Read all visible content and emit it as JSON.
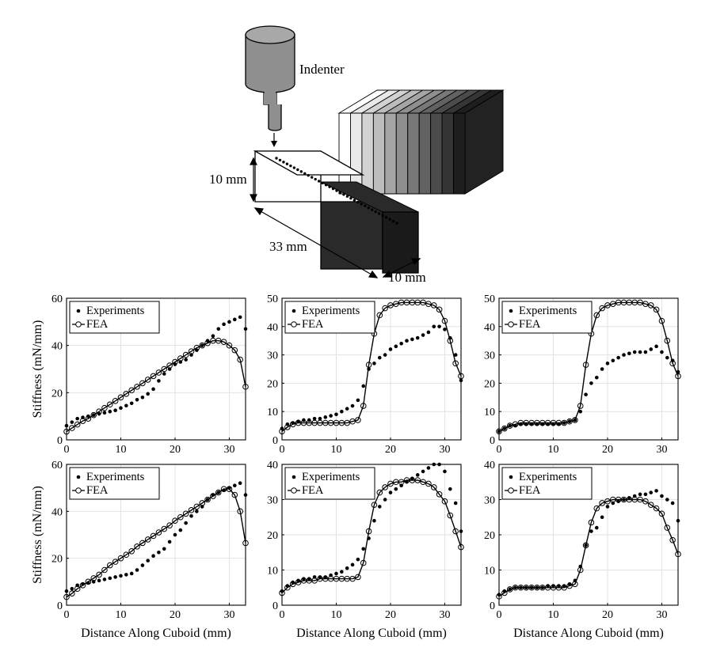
{
  "diagram": {
    "indenter_label": "Indenter",
    "height_label": "10 mm",
    "length_label": "33 mm",
    "width_label": "10 mm"
  },
  "legend": {
    "experiments": "Experiments",
    "fea": "FEA"
  },
  "axis": {
    "xlabel": "Distance Along Cuboid (mm)",
    "ylabel": "Stiffness (mN/mm)",
    "xticks": [
      0,
      10,
      20,
      30
    ],
    "xlim": [
      0,
      33
    ]
  },
  "chart_data": [
    {
      "type": "scatter",
      "ylim": [
        0,
        60
      ],
      "yticks": [
        0,
        20,
        40,
        60
      ],
      "series": [
        {
          "name": "Experiments",
          "x": [
            0,
            1,
            2,
            3,
            4,
            5,
            6,
            7,
            8,
            9,
            10,
            11,
            12,
            13,
            14,
            15,
            16,
            17,
            18,
            19,
            20,
            21,
            22,
            23,
            24,
            25,
            26,
            27,
            28,
            29,
            30,
            31,
            32,
            33
          ],
          "y": [
            6,
            7.5,
            9,
            9.5,
            10,
            10.5,
            11,
            11.5,
            12,
            12.5,
            13.5,
            14.5,
            15.5,
            17,
            18,
            19.5,
            21.5,
            25,
            28,
            30,
            32,
            33,
            34,
            36,
            38,
            40,
            42,
            44,
            47,
            49,
            50,
            51,
            52,
            47
          ]
        },
        {
          "name": "FEA",
          "x": [
            0,
            1,
            2,
            3,
            4,
            5,
            6,
            7,
            8,
            9,
            10,
            11,
            12,
            13,
            14,
            15,
            16,
            17,
            18,
            19,
            20,
            21,
            22,
            23,
            24,
            25,
            26,
            27,
            28,
            29,
            30,
            31,
            32,
            33
          ],
          "y": [
            3.5,
            5,
            6.5,
            8,
            9,
            10.5,
            12,
            13.5,
            15,
            16.5,
            18,
            19.5,
            21,
            22.5,
            24,
            25.5,
            27,
            28.5,
            30,
            31.5,
            33,
            34.5,
            36,
            37.5,
            39,
            40,
            41,
            42,
            42,
            41.5,
            40,
            38,
            34,
            22.5
          ]
        }
      ]
    },
    {
      "type": "scatter",
      "ylim": [
        0,
        50
      ],
      "yticks": [
        0,
        10,
        20,
        30,
        40,
        50
      ],
      "series": [
        {
          "name": "Experiments",
          "x": [
            0,
            1,
            2,
            3,
            4,
            5,
            6,
            7,
            8,
            9,
            10,
            11,
            12,
            13,
            14,
            15,
            16,
            17,
            18,
            19,
            20,
            21,
            22,
            23,
            24,
            25,
            26,
            27,
            28,
            29,
            30,
            31,
            32,
            33
          ],
          "y": [
            4,
            5.5,
            6,
            6.5,
            7,
            7,
            7.5,
            7.5,
            8,
            8.5,
            9,
            10,
            11,
            12,
            14,
            19,
            25,
            27,
            29,
            30,
            32,
            33,
            34,
            35,
            35.5,
            36,
            37,
            38,
            40,
            40,
            39,
            36,
            30,
            21
          ]
        },
        {
          "name": "FEA",
          "x": [
            0,
            1,
            2,
            3,
            4,
            5,
            6,
            7,
            8,
            9,
            10,
            11,
            12,
            13,
            14,
            15,
            16,
            17,
            18,
            19,
            20,
            21,
            22,
            23,
            24,
            25,
            26,
            27,
            28,
            29,
            30,
            31,
            32,
            33
          ],
          "y": [
            3,
            4.5,
            5.5,
            6,
            6,
            6,
            6,
            6,
            6,
            6,
            6,
            6,
            6,
            6.5,
            7,
            12,
            26.5,
            37.5,
            44,
            46.5,
            47.5,
            48,
            48.5,
            48.5,
            48.5,
            48.5,
            48.5,
            48,
            47.5,
            46,
            42,
            35,
            27,
            22.5
          ]
        }
      ]
    },
    {
      "type": "scatter",
      "ylim": [
        0,
        50
      ],
      "yticks": [
        0,
        10,
        20,
        30,
        40,
        50
      ],
      "series": [
        {
          "name": "Experiments",
          "x": [
            0,
            1,
            2,
            3,
            4,
            5,
            6,
            7,
            8,
            9,
            10,
            11,
            12,
            13,
            14,
            15,
            16,
            17,
            18,
            19,
            20,
            21,
            22,
            23,
            24,
            25,
            26,
            27,
            28,
            29,
            30,
            31,
            32,
            33
          ],
          "y": [
            3,
            4,
            5,
            5,
            5.5,
            5.5,
            5.5,
            5.5,
            5.5,
            5.5,
            5.5,
            5.5,
            6,
            6.5,
            7,
            10,
            16,
            20,
            22,
            25,
            27,
            28,
            29,
            30,
            30.5,
            31,
            31,
            31,
            32,
            33,
            31,
            29,
            28,
            24
          ]
        },
        {
          "name": "FEA",
          "x": [
            0,
            1,
            2,
            3,
            4,
            5,
            6,
            7,
            8,
            9,
            10,
            11,
            12,
            13,
            14,
            15,
            16,
            17,
            18,
            19,
            20,
            21,
            22,
            23,
            24,
            25,
            26,
            27,
            28,
            29,
            30,
            31,
            32,
            33
          ],
          "y": [
            3,
            4,
            5,
            5.5,
            6,
            6,
            6,
            6,
            6,
            6,
            6,
            6,
            6,
            6.5,
            7,
            12,
            26.5,
            37.5,
            44,
            46.5,
            47.5,
            48,
            48.5,
            48.5,
            48.5,
            48.5,
            48.5,
            48,
            47.5,
            46,
            42,
            35,
            27,
            22.5
          ]
        }
      ]
    },
    {
      "type": "scatter",
      "ylim": [
        0,
        60
      ],
      "yticks": [
        0,
        20,
        40,
        60
      ],
      "series": [
        {
          "name": "Experiments",
          "x": [
            0,
            1,
            2,
            3,
            4,
            5,
            6,
            7,
            8,
            9,
            10,
            11,
            12,
            13,
            14,
            15,
            16,
            17,
            18,
            19,
            20,
            21,
            22,
            23,
            24,
            25,
            26,
            27,
            28,
            29,
            30,
            31,
            32,
            33
          ],
          "y": [
            6,
            7,
            8.5,
            9,
            9.5,
            10,
            10.5,
            11,
            11.5,
            12,
            12.5,
            13,
            13.5,
            15,
            17,
            19,
            21,
            22.5,
            24,
            27,
            30,
            32,
            35,
            38,
            40,
            42,
            45,
            47,
            48,
            49,
            50,
            51,
            52,
            47
          ]
        },
        {
          "name": "FEA",
          "x": [
            0,
            1,
            2,
            3,
            4,
            5,
            6,
            7,
            8,
            9,
            10,
            11,
            12,
            13,
            14,
            15,
            16,
            17,
            18,
            19,
            20,
            21,
            22,
            23,
            24,
            25,
            26,
            27,
            28,
            29,
            30,
            31,
            32,
            33
          ],
          "y": [
            3.5,
            5,
            7,
            8.5,
            10,
            11.5,
            13,
            15,
            17,
            18.5,
            20,
            21.5,
            23,
            25,
            26.5,
            28,
            29.5,
            31,
            32.5,
            34,
            36,
            37.5,
            39,
            40.5,
            42,
            43.5,
            45,
            46.5,
            48,
            49.5,
            49.5,
            47,
            40,
            26.5
          ]
        }
      ]
    },
    {
      "type": "scatter",
      "ylim": [
        0,
        40
      ],
      "yticks": [
        0,
        10,
        20,
        30,
        40
      ],
      "series": [
        {
          "name": "Experiments",
          "x": [
            0,
            1,
            2,
            3,
            4,
            5,
            6,
            7,
            8,
            9,
            10,
            11,
            12,
            13,
            14,
            15,
            16,
            17,
            18,
            19,
            20,
            21,
            22,
            23,
            24,
            25,
            26,
            27,
            28,
            29,
            30,
            31,
            32,
            33
          ],
          "y": [
            4,
            5.5,
            6.5,
            7,
            7.5,
            7.5,
            8,
            8,
            8,
            8.5,
            9,
            9.5,
            10.5,
            11.5,
            13,
            16,
            19,
            24,
            28,
            30,
            32,
            33,
            34,
            35,
            36,
            37,
            38,
            39,
            40,
            40,
            38,
            33,
            29,
            21
          ]
        },
        {
          "name": "FEA",
          "x": [
            0,
            1,
            2,
            3,
            4,
            5,
            6,
            7,
            8,
            9,
            10,
            11,
            12,
            13,
            14,
            15,
            16,
            17,
            18,
            19,
            20,
            21,
            22,
            23,
            24,
            25,
            26,
            27,
            28,
            29,
            30,
            31,
            32,
            33
          ],
          "y": [
            3.5,
            5,
            6,
            6.5,
            7,
            7,
            7,
            7.5,
            7.5,
            7.5,
            7.5,
            7.5,
            7.5,
            7.5,
            8,
            12,
            21,
            28.5,
            32,
            33.5,
            34.5,
            35,
            35,
            35.5,
            35.5,
            35.5,
            35,
            34.5,
            33.5,
            31.5,
            29.5,
            25.5,
            21,
            16.5
          ]
        }
      ]
    },
    {
      "type": "scatter",
      "ylim": [
        0,
        40
      ],
      "yticks": [
        0,
        10,
        20,
        30,
        40
      ],
      "series": [
        {
          "name": "Experiments",
          "x": [
            0,
            1,
            2,
            3,
            4,
            5,
            6,
            7,
            8,
            9,
            10,
            11,
            12,
            13,
            14,
            15,
            16,
            17,
            18,
            19,
            20,
            21,
            22,
            23,
            24,
            25,
            26,
            27,
            28,
            29,
            30,
            31,
            32,
            33
          ],
          "y": [
            3,
            4,
            4.5,
            5,
            5,
            5,
            5,
            5,
            5,
            5.5,
            5.5,
            5.5,
            5.5,
            6,
            7,
            11,
            17,
            21,
            22,
            25,
            28,
            29,
            29.5,
            30,
            30.5,
            31,
            31.5,
            31.5,
            32,
            32.5,
            31,
            30,
            29,
            24
          ]
        },
        {
          "name": "FEA",
          "x": [
            0,
            1,
            2,
            3,
            4,
            5,
            6,
            7,
            8,
            9,
            10,
            11,
            12,
            13,
            14,
            15,
            16,
            17,
            18,
            19,
            20,
            21,
            22,
            23,
            24,
            25,
            26,
            27,
            28,
            29,
            30,
            31,
            32,
            33
          ],
          "y": [
            2.5,
            3.5,
            4.5,
            5,
            5,
            5,
            5,
            5,
            5,
            5,
            5,
            5,
            5,
            5.5,
            6,
            10,
            17,
            23.5,
            27.5,
            29,
            29.5,
            30,
            30,
            30,
            30,
            30,
            30,
            29.5,
            28.5,
            27.5,
            26,
            22,
            18.5,
            14.5
          ]
        }
      ]
    }
  ]
}
